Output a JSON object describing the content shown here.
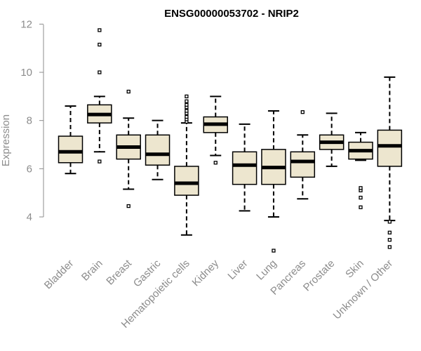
{
  "chart_data": {
    "type": "boxplot",
    "title": "ENSG00000053702 - NRIP2",
    "xlabel": "",
    "ylabel": "Expression",
    "ylim": [
      2.5,
      12
    ],
    "yticks": [
      4,
      6,
      8,
      10,
      12
    ],
    "categories": [
      "Bladder",
      "Brain",
      "Breast",
      "Gastric",
      "Hematopoietic cells",
      "Kidney",
      "Liver",
      "Lung",
      "Pancreas",
      "Prostate",
      "Skin",
      "Unknown / Other"
    ],
    "boxes": [
      {
        "name": "Bladder",
        "whisker_low": 5.8,
        "q1": 6.25,
        "median": 6.7,
        "q3": 7.35,
        "whisker_high": 8.6,
        "outliers": []
      },
      {
        "name": "Brain",
        "whisker_low": 6.7,
        "q1": 7.9,
        "median": 8.25,
        "q3": 8.65,
        "whisker_high": 9.0,
        "outliers": [
          6.3,
          10.0,
          11.15,
          11.75
        ]
      },
      {
        "name": "Breast",
        "whisker_low": 5.15,
        "q1": 6.4,
        "median": 6.9,
        "q3": 7.4,
        "whisker_high": 8.1,
        "outliers": [
          4.45,
          9.2
        ]
      },
      {
        "name": "Gastric",
        "whisker_low": 5.55,
        "q1": 6.15,
        "median": 6.6,
        "q3": 7.4,
        "whisker_high": 8.0,
        "outliers": []
      },
      {
        "name": "Hematopoietic cells",
        "whisker_low": 3.25,
        "q1": 4.9,
        "median": 5.4,
        "q3": 6.1,
        "whisker_high": 7.9,
        "outliers": [
          7.95,
          8.05,
          8.15,
          8.3,
          8.4,
          8.55,
          8.65,
          8.8,
          9.0
        ]
      },
      {
        "name": "Kidney",
        "whisker_low": 6.55,
        "q1": 7.5,
        "median": 7.85,
        "q3": 8.15,
        "whisker_high": 9.0,
        "outliers": [
          6.25
        ]
      },
      {
        "name": "Liver",
        "whisker_low": 4.25,
        "q1": 5.35,
        "median": 6.15,
        "q3": 6.7,
        "whisker_high": 7.85,
        "outliers": []
      },
      {
        "name": "Lung",
        "whisker_low": 4.0,
        "q1": 5.35,
        "median": 6.05,
        "q3": 6.8,
        "whisker_high": 8.4,
        "outliers": [
          2.6
        ]
      },
      {
        "name": "Pancreas",
        "whisker_low": 4.75,
        "q1": 5.65,
        "median": 6.3,
        "q3": 6.7,
        "whisker_high": 7.4,
        "outliers": [
          8.35
        ]
      },
      {
        "name": "Prostate",
        "whisker_low": 6.1,
        "q1": 6.8,
        "median": 7.1,
        "q3": 7.4,
        "whisker_high": 8.3,
        "outliers": []
      },
      {
        "name": "Skin",
        "whisker_low": 6.35,
        "q1": 6.4,
        "median": 6.75,
        "q3": 7.1,
        "whisker_high": 7.5,
        "outliers": [
          4.4,
          4.8,
          5.1,
          5.2
        ]
      },
      {
        "name": "Unknown / Other",
        "whisker_low": 3.85,
        "q1": 6.1,
        "median": 6.95,
        "q3": 7.6,
        "whisker_high": 9.8,
        "outliers": [
          2.75,
          3.05,
          3.35,
          3.8
        ]
      }
    ]
  }
}
